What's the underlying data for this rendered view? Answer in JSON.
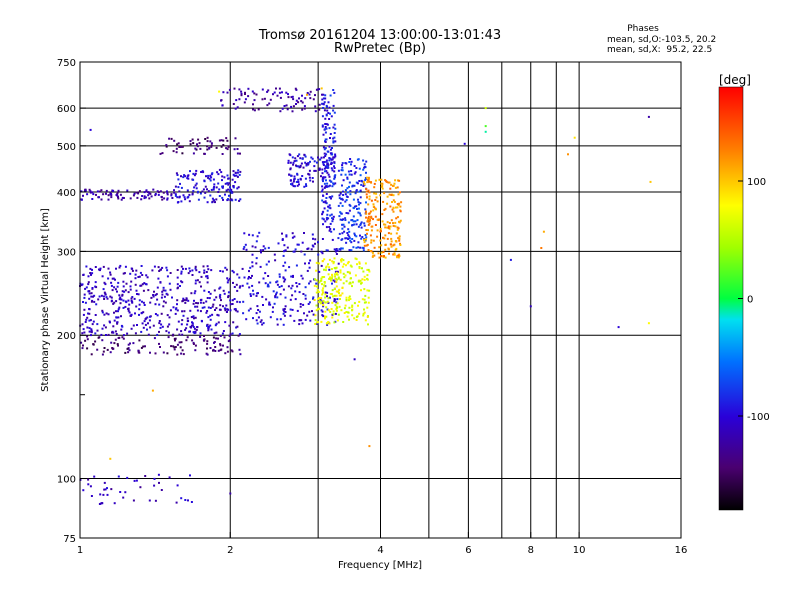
{
  "chart_data": {
    "type": "scatter",
    "title": "Tromsø 20161204 13:00:00-13:01:43",
    "subtitle": "RwPretec (Bp)",
    "xlabel": "Frequency [MHz]",
    "ylabel": "Stationary phase Virtual Height [km]",
    "x_scale": "log",
    "y_scale": "log",
    "xlim": [
      1,
      16
    ],
    "ylim": [
      75,
      750
    ],
    "grid": true,
    "x_ticks": [
      1,
      2,
      4,
      6,
      8,
      10,
      16
    ],
    "x_tick_labels": [
      "1",
      "2",
      "4",
      "6",
      "8",
      "10",
      "16"
    ],
    "x_minor_ticks": [
      3,
      5,
      7,
      9
    ],
    "y_ticks": [
      75,
      100,
      200,
      300,
      400,
      500,
      600,
      750
    ],
    "y_tick_labels": [
      "75",
      "100",
      "200",
      "300",
      "400",
      "500",
      "600",
      "750"
    ],
    "y_minor_ticks": [
      150
    ],
    "stats": {
      "heading": "Phases",
      "line1": "mean, sd,O:-103.5, 20.2",
      "line2": "mean, sd,X:  95.2, 22.5"
    },
    "colorbar": {
      "label": "[deg]",
      "min": -180,
      "max": 180,
      "tick_values": [
        100,
        0,
        -100
      ],
      "tick_labels": [
        "100",
        "0",
        "-100"
      ]
    },
    "traces": [
      {
        "x_range": [
          1.0,
          2.1
        ],
        "y_range": [
          182,
          200
        ],
        "phase": -140,
        "count": 120
      },
      {
        "x_range": [
          1.0,
          2.1
        ],
        "y_range": [
          200,
          280
        ],
        "phase": -110,
        "count": 520
      },
      {
        "x_range": [
          1.0,
          1.55
        ],
        "y_range": [
          385,
          405
        ],
        "phase": -120,
        "count": 90
      },
      {
        "x_range": [
          1.55,
          2.1
        ],
        "y_range": [
          380,
          445
        ],
        "phase": -100,
        "count": 150
      },
      {
        "x_range": [
          1.45,
          2.1
        ],
        "y_range": [
          480,
          520
        ],
        "phase": -140,
        "count": 60
      },
      {
        "x_range": [
          1.9,
          3.1
        ],
        "y_range": [
          590,
          660
        ],
        "phase": -120,
        "count": 90
      },
      {
        "x_range": [
          2.6,
          3.25
        ],
        "y_range": [
          410,
          480
        ],
        "phase": -100,
        "count": 120
      },
      {
        "x_range": [
          2.1,
          3.3
        ],
        "y_range": [
          210,
          330
        ],
        "phase": -100,
        "count": 260
      },
      {
        "x_range": [
          2.95,
          3.8
        ],
        "y_range": [
          210,
          290
        ],
        "phase": 70,
        "count": 240
      },
      {
        "x_range": [
          3.3,
          3.75
        ],
        "y_range": [
          300,
          470
        ],
        "phase": -80,
        "count": 180
      },
      {
        "x_range": [
          3.7,
          4.4
        ],
        "y_range": [
          290,
          430
        ],
        "phase": 120,
        "count": 220
      },
      {
        "x_range": [
          3.05,
          3.25
        ],
        "y_range": [
          330,
          660
        ],
        "phase": -90,
        "count": 160
      },
      {
        "x_range": [
          1.0,
          1.7
        ],
        "y_range": [
          88,
          102
        ],
        "phase": -110,
        "count": 45
      }
    ],
    "scatter_points": [
      {
        "x": 13.8,
        "y": 575,
        "phase": -120
      },
      {
        "x": 13.9,
        "y": 420,
        "phase": 100
      },
      {
        "x": 13.8,
        "y": 212,
        "phase": 80
      },
      {
        "x": 12.0,
        "y": 208,
        "phase": -100
      },
      {
        "x": 9.8,
        "y": 520,
        "phase": 90
      },
      {
        "x": 9.5,
        "y": 480,
        "phase": 120
      },
      {
        "x": 8.5,
        "y": 330,
        "phase": 110
      },
      {
        "x": 8.4,
        "y": 305,
        "phase": 130
      },
      {
        "x": 8.0,
        "y": 230,
        "phase": -110
      },
      {
        "x": 7.3,
        "y": 288,
        "phase": -90
      },
      {
        "x": 6.5,
        "y": 600,
        "phase": 60
      },
      {
        "x": 6.5,
        "y": 550,
        "phase": 20
      },
      {
        "x": 6.5,
        "y": 535,
        "phase": -10
      },
      {
        "x": 5.9,
        "y": 505,
        "phase": -100
      },
      {
        "x": 3.8,
        "y": 117,
        "phase": 120
      },
      {
        "x": 3.55,
        "y": 178,
        "phase": -110
      },
      {
        "x": 2.0,
        "y": 93,
        "phase": -120
      },
      {
        "x": 1.4,
        "y": 153,
        "phase": 110
      },
      {
        "x": 1.15,
        "y": 110,
        "phase": 100
      },
      {
        "x": 1.05,
        "y": 540,
        "phase": -100
      },
      {
        "x": 1.9,
        "y": 650,
        "phase": 80
      },
      {
        "x": 2.85,
        "y": 640,
        "phase": 110
      },
      {
        "x": 3.05,
        "y": 660,
        "phase": 100
      }
    ]
  }
}
